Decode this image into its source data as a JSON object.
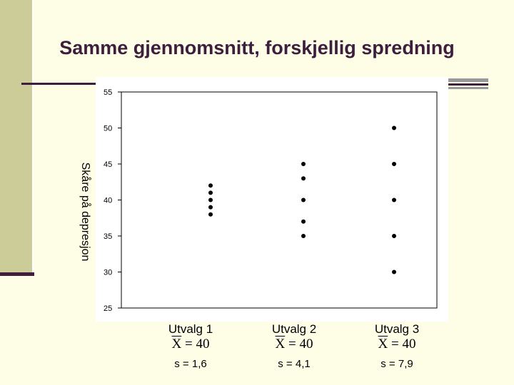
{
  "title": "Samme gjennomsnitt, forskjellig spredning",
  "colors": {
    "background": "#fefee6",
    "accent": "#3d1e3d",
    "sidebar": "#cccc99"
  },
  "samples": [
    {
      "name": "Utvalg 1",
      "mean_symbol": "X",
      "mean_value": "= 40",
      "sd": "s = 1,6"
    },
    {
      "name": "Utvalg 2",
      "mean_symbol": "X",
      "mean_value": "= 40",
      "sd": "s = 4,1"
    },
    {
      "name": "Utvalg 3",
      "mean_symbol": "X",
      "mean_value": "= 40",
      "sd": "s = 7,9"
    }
  ],
  "chart_data": {
    "type": "scatter",
    "ylabel": "Skåre på depresjon",
    "ylim": [
      25,
      55
    ],
    "yticks": [
      "55",
      "50",
      "45",
      "40",
      "35",
      "30",
      "25"
    ],
    "grid": false,
    "series": [
      {
        "values": [
          38,
          39,
          40,
          41,
          42
        ]
      },
      {
        "values": [
          35,
          37,
          40,
          43,
          45
        ]
      },
      {
        "values": [
          30,
          35,
          40,
          45,
          50
        ]
      }
    ]
  }
}
